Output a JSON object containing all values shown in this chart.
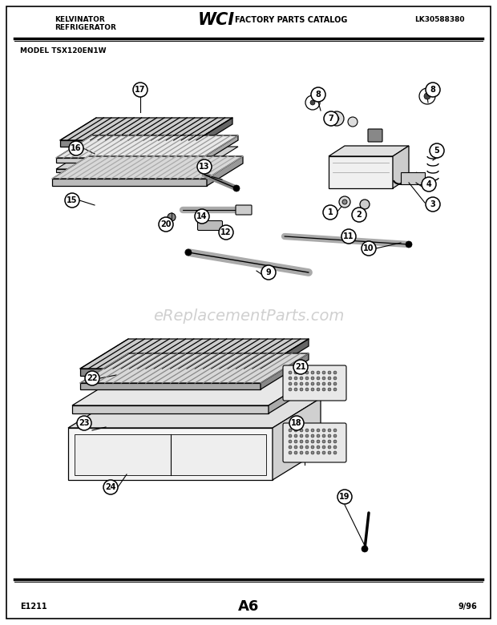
{
  "title_left1": "KELVINATOR",
  "title_left2": "REFRIGERATOR",
  "title_center": "FACTORY PARTS CATALOG",
  "title_right": "LK30588380",
  "model": "MODEL TSX120EN1W",
  "page": "A6",
  "date": "9/96",
  "diagram_id": "E1211",
  "watermark": "eReplacementParts.com",
  "bg_color": "#ffffff",
  "border_color": "#000000"
}
